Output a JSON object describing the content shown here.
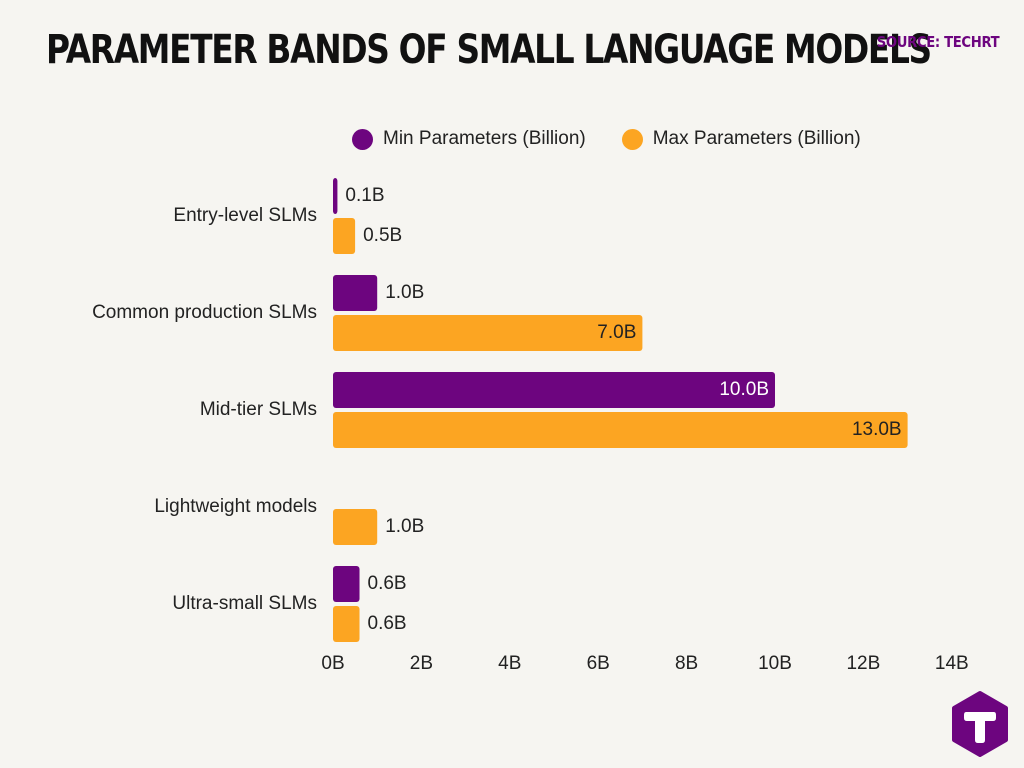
{
  "title": "PARAMETER BANDS OF SMALL LANGUAGE MODELS",
  "source": "SOURCE: TECHRT",
  "colors": {
    "min": "#6d057f",
    "max": "#fca522",
    "text": "#222222",
    "accent": "#6d057f"
  },
  "logo": {
    "icon": "techrt-hexagon-logo-icon"
  },
  "chart_data": {
    "type": "bar",
    "orientation": "horizontal",
    "categories": [
      "Entry-level SLMs",
      "Common production SLMs",
      "Mid-tier SLMs",
      "Lightweight models",
      "Ultra-small SLMs"
    ],
    "series": [
      {
        "name": "Min Parameters (Billion)",
        "values": [
          0.1,
          1.0,
          10.0,
          null,
          0.6
        ],
        "labels": [
          "0.1B",
          "1.0B",
          "10.0B",
          "",
          "0.6B"
        ]
      },
      {
        "name": "Max Parameters (Billion)",
        "values": [
          0.5,
          7.0,
          13.0,
          1.0,
          0.6
        ],
        "labels": [
          "0.5B",
          "7.0B",
          "13.0B",
          "1.0B",
          "0.6B"
        ]
      }
    ],
    "xlim": [
      0,
      14
    ],
    "xticks": [
      0,
      2,
      4,
      6,
      8,
      10,
      12,
      14
    ],
    "xtick_labels": [
      "0B",
      "2B",
      "4B",
      "6B",
      "8B",
      "10B",
      "12B",
      "14B"
    ],
    "legend": "top",
    "grid": false
  }
}
